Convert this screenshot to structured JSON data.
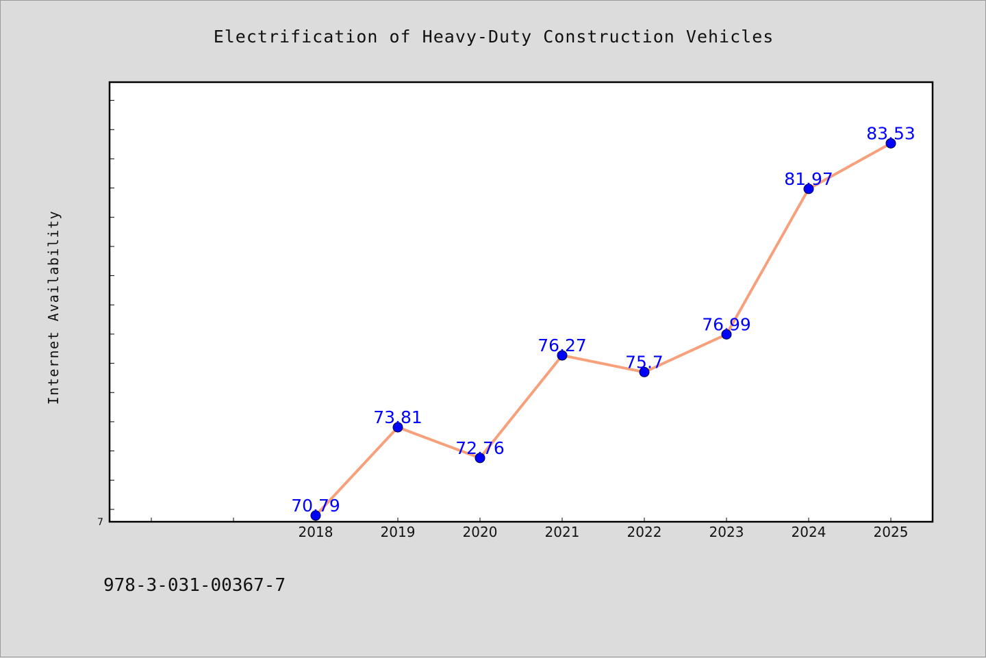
{
  "colors": {
    "background": "#dcdcdc",
    "plot_background": "#ffffff",
    "line": "#f7a07c",
    "marker": "#0000ff",
    "data_label": "#0000ff",
    "axis": "#000000"
  },
  "footer_text": "978-3-031-00367-7",
  "chart_data": {
    "type": "line",
    "title": "Electrification of Heavy-Duty Construction Vehicles",
    "xlabel": "",
    "ylabel": "Internet Availability",
    "y_min_label": "7",
    "categories": [
      "2018",
      "2019",
      "2020",
      "2021",
      "2022",
      "2023",
      "2024",
      "2025"
    ],
    "values": [
      70.79,
      73.81,
      72.76,
      76.27,
      75.7,
      76.99,
      81.97,
      83.53
    ],
    "data_labels": [
      "70.79",
      "73.81",
      "72.76",
      "76.27",
      "75.7",
      "76.99",
      "81.97",
      "83.53"
    ],
    "ylim": [
      70.6,
      85.6
    ],
    "y_minor_step": 1,
    "x_slots_before_first": 2,
    "grid": false,
    "legend": "none"
  }
}
